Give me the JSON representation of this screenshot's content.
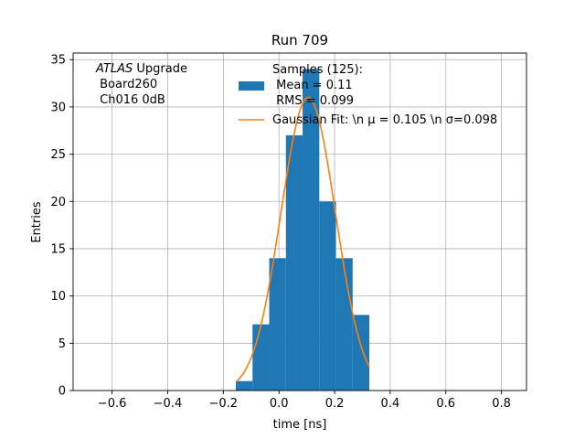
{
  "chart_data": {
    "type": "bar",
    "title": "Run 709",
    "xlabel": "time [ns]",
    "ylabel": "Entries",
    "xlim": [
      -0.74,
      0.89
    ],
    "ylim": [
      0,
      35.7
    ],
    "xticks": [
      -0.6,
      -0.4,
      -0.2,
      0.0,
      0.2,
      0.4,
      0.6,
      0.8
    ],
    "xtick_labels": [
      "−0.6",
      "−0.4",
      "−0.2",
      "0.0",
      "0.2",
      "0.4",
      "0.6",
      "0.8"
    ],
    "yticks": [
      0,
      5,
      10,
      15,
      20,
      25,
      30,
      35
    ],
    "ytick_labels": [
      "0",
      "5",
      "10",
      "15",
      "20",
      "25",
      "30",
      "35"
    ],
    "grid": true,
    "histogram": {
      "bin_edges": [
        -0.155,
        -0.095,
        -0.035,
        0.025,
        0.085,
        0.145,
        0.205,
        0.265,
        0.325
      ],
      "counts": [
        1,
        7,
        14,
        27,
        34,
        20,
        14,
        8
      ],
      "color": "#1f77b4"
    },
    "fit": {
      "mu": 0.105,
      "sigma": 0.098,
      "peak": 31,
      "x_range": [
        -0.155,
        0.325
      ],
      "color": "#ff7f0e"
    },
    "legend": {
      "placement": "top-center",
      "entries": [
        {
          "kind": "patch",
          "lines": [
            "Samples (125):",
            " Mean = 0.11",
            " RMS = 0.099"
          ]
        },
        {
          "kind": "line",
          "lines": [
            "Gaussian Fit: \\n μ = 0.105 \\n σ=0.098"
          ]
        }
      ]
    },
    "annotation": {
      "lines": [
        {
          "italic": "ATLAS",
          "rest": " Upgrade"
        },
        {
          "italic": "",
          "rest": " Board260"
        },
        {
          "italic": "",
          "rest": " Ch016 0dB"
        }
      ]
    }
  }
}
